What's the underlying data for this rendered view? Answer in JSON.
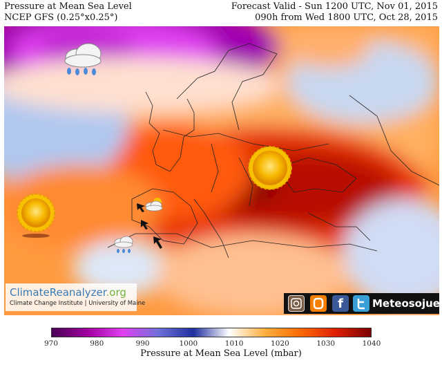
{
  "header": {
    "left_line1": "Pressure at Mean Sea Level",
    "left_line2": "NCEP GFS (0.25°x0.25°)",
    "right_line1": "Forecast Valid - Sun 1200 UTC, Nov 01, 2015",
    "right_line2": "090h from Wed 1800 UTC, Oct 28, 2015"
  },
  "logo": {
    "name": "ClimateReanalyzer",
    "suffix": ".org",
    "subtitle": "Climate Change Institute | University of Maine"
  },
  "social": {
    "icons": [
      "instagram-icon",
      "blogger-icon",
      "facebook-icon",
      "twitter-icon"
    ],
    "facebook_glyph": "f",
    "brand": "Meteosojuela"
  },
  "colorbar": {
    "ticks": [
      "970",
      "980",
      "990",
      "1000",
      "1010",
      "1020",
      "1030",
      "1040"
    ],
    "label": "Pressure at Mean Sea Level (mbar)",
    "colors": [
      "#4a0055",
      "#a000a0",
      "#e040f0",
      "#7070d8",
      "#2030a0",
      "#ffffff",
      "#ffb040",
      "#ff6a00",
      "#e02000",
      "#7a0000"
    ]
  },
  "map_symbols": [
    "sun-icon",
    "sun-icon",
    "rain-cloud-icon",
    "rain-cloud-icon",
    "partly-cloudy-icon",
    "wind-arrow-icon"
  ]
}
